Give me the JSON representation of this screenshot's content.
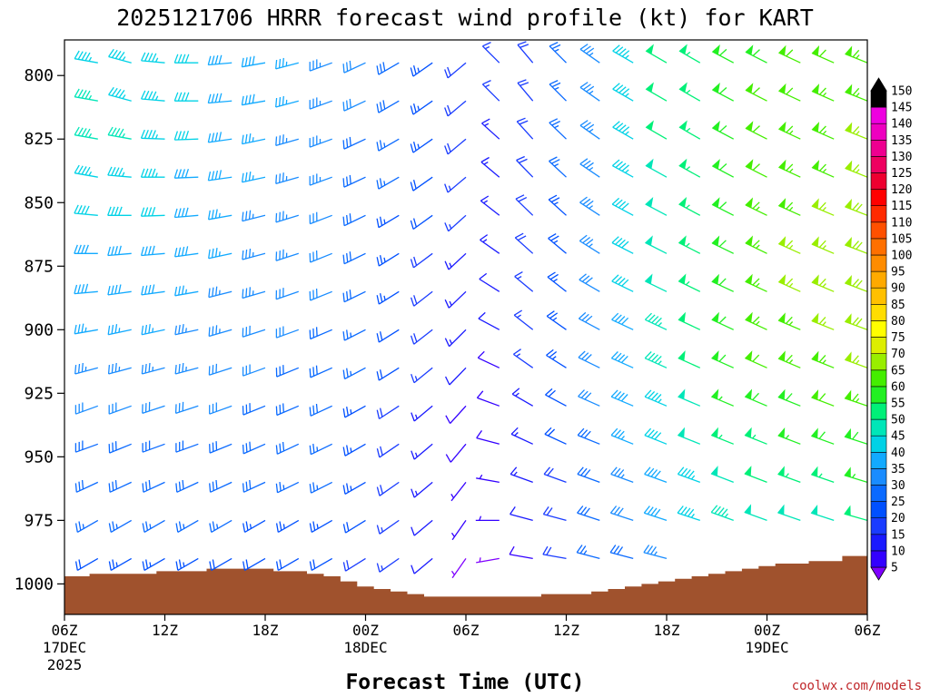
{
  "title": "2025121706 HRRR forecast wind profile (kt) for KART",
  "credit": "coolwx.com/models",
  "chart_data": {
    "type": "wind_barb_time_height",
    "xlabel": "Forecast Time (UTC)",
    "ylabel": "",
    "x_range_hours": [
      0,
      48
    ],
    "y_range_hpa": [
      1012,
      786
    ],
    "y_axis_inverted": true,
    "x_ticks": [
      {
        "hour": 0,
        "label": "06Z",
        "date1": "17DEC",
        "date2": "2025"
      },
      {
        "hour": 6,
        "label": "12Z",
        "date1": "",
        "date2": ""
      },
      {
        "hour": 12,
        "label": "18Z",
        "date1": "",
        "date2": ""
      },
      {
        "hour": 18,
        "label": "00Z",
        "date1": "18DEC",
        "date2": ""
      },
      {
        "hour": 24,
        "label": "06Z",
        "date1": "",
        "date2": ""
      },
      {
        "hour": 30,
        "label": "12Z",
        "date1": "",
        "date2": ""
      },
      {
        "hour": 36,
        "label": "18Z",
        "date1": "",
        "date2": ""
      },
      {
        "hour": 42,
        "label": "00Z",
        "date1": "19DEC",
        "date2": ""
      },
      {
        "hour": 48,
        "label": "06Z",
        "date1": "",
        "date2": ""
      }
    ],
    "y_ticks": [
      "800",
      "825",
      "850",
      "875",
      "900",
      "925",
      "950",
      "975",
      "1000"
    ],
    "colorbar": {
      "labels": [
        "5",
        "10",
        "15",
        "20",
        "25",
        "30",
        "35",
        "40",
        "45",
        "50",
        "55",
        "60",
        "65",
        "70",
        "75",
        "80",
        "85",
        "90",
        "95",
        "100",
        "105",
        "110",
        "115",
        "120",
        "125",
        "130",
        "135",
        "140",
        "145",
        "150"
      ],
      "colors": [
        "#7f00ff",
        "#3300ff",
        "#1a1aff",
        "#1a3cff",
        "#0050ff",
        "#0a6aff",
        "#1a8cff",
        "#12aaff",
        "#00d2e6",
        "#00e6b8",
        "#00f078",
        "#22f022",
        "#44ee00",
        "#99ee00",
        "#ddee00",
        "#ffff00",
        "#ffdd00",
        "#ffc000",
        "#ffaa00",
        "#ff8c00",
        "#ff7000",
        "#ff5000",
        "#ff2a00",
        "#ff0000",
        "#ee0030",
        "#ee0060",
        "#ee0090",
        "#ee00c0",
        "#ee00e0",
        "#000000"
      ]
    },
    "terrain_surface_pressure_hpa": [
      [
        0,
        997
      ],
      [
        1,
        997
      ],
      [
        2,
        996
      ],
      [
        3,
        996
      ],
      [
        4,
        996
      ],
      [
        5,
        996
      ],
      [
        6,
        995
      ],
      [
        7,
        995
      ],
      [
        8,
        995
      ],
      [
        9,
        994
      ],
      [
        10,
        994
      ],
      [
        11,
        994
      ],
      [
        12,
        994
      ],
      [
        13,
        995
      ],
      [
        14,
        995
      ],
      [
        15,
        996
      ],
      [
        16,
        997
      ],
      [
        17,
        999
      ],
      [
        18,
        1001
      ],
      [
        19,
        1002
      ],
      [
        20,
        1003
      ],
      [
        21,
        1004
      ],
      [
        22,
        1005
      ],
      [
        23,
        1005
      ],
      [
        24,
        1005
      ],
      [
        25,
        1005
      ],
      [
        26,
        1005
      ],
      [
        27,
        1005
      ],
      [
        28,
        1005
      ],
      [
        29,
        1004
      ],
      [
        30,
        1004
      ],
      [
        31,
        1004
      ],
      [
        32,
        1003
      ],
      [
        33,
        1002
      ],
      [
        34,
        1001
      ],
      [
        35,
        1000
      ],
      [
        36,
        999
      ],
      [
        37,
        998
      ],
      [
        38,
        997
      ],
      [
        39,
        996
      ],
      [
        40,
        995
      ],
      [
        41,
        994
      ],
      [
        42,
        993
      ],
      [
        43,
        992
      ],
      [
        44,
        992
      ],
      [
        45,
        991
      ],
      [
        46,
        991
      ],
      [
        47,
        989
      ],
      [
        48,
        989
      ]
    ],
    "wind_rows_hpa": [
      795,
      810,
      825,
      840,
      855,
      870,
      885,
      900,
      915,
      930,
      945,
      960,
      975,
      990
    ],
    "wind_columns": [
      {
        "hour": 0,
        "direction_deg": [
          255,
          255,
          255,
          255,
          255,
          255,
          255,
          250,
          250,
          250,
          250,
          245,
          240,
          240
        ],
        "speed_kt": [
          38,
          40,
          40,
          38,
          38,
          37,
          36,
          35,
          35,
          33,
          32,
          30,
          28,
          25
        ]
      },
      {
        "hour": 2,
        "direction_deg": [
          280,
          280,
          280,
          280,
          275,
          270,
          265,
          260,
          255,
          250,
          250,
          245,
          240,
          240
        ],
        "speed_kt": [
          45,
          48,
          48,
          46,
          44,
          42,
          40,
          38,
          36,
          34,
          32,
          30,
          28,
          24
        ]
      },
      {
        "hour": 4,
        "direction_deg": [
          285,
          285,
          280,
          275,
          270,
          265,
          262,
          258,
          255,
          250,
          248,
          245,
          240,
          240
        ],
        "speed_kt": [
          45,
          47,
          48,
          46,
          44,
          42,
          40,
          38,
          36,
          34,
          32,
          30,
          28,
          25
        ]
      },
      {
        "hour": 6,
        "direction_deg": [
          275,
          275,
          272,
          270,
          268,
          265,
          262,
          258,
          255,
          252,
          250,
          245,
          240,
          240
        ],
        "speed_kt": [
          45,
          46,
          46,
          45,
          44,
          42,
          40,
          38,
          36,
          34,
          32,
          30,
          28,
          25
        ]
      },
      {
        "hour": 8,
        "direction_deg": [
          270,
          270,
          268,
          268,
          265,
          262,
          260,
          258,
          255,
          252,
          250,
          245,
          240,
          240
        ],
        "speed_kt": [
          44,
          44,
          43,
          42,
          41,
          40,
          38,
          37,
          35,
          34,
          32,
          30,
          28,
          25
        ]
      },
      {
        "hour": 10,
        "direction_deg": [
          265,
          265,
          262,
          262,
          260,
          258,
          256,
          254,
          252,
          250,
          248,
          245,
          240,
          240
        ],
        "speed_kt": [
          42,
          42,
          40,
          40,
          38,
          38,
          37,
          35,
          34,
          33,
          32,
          30,
          28,
          24
        ]
      },
      {
        "hour": 12,
        "direction_deg": [
          260,
          260,
          258,
          258,
          256,
          255,
          254,
          252,
          250,
          248,
          246,
          245,
          240,
          240
        ],
        "speed_kt": [
          40,
          40,
          38,
          38,
          37,
          36,
          35,
          34,
          33,
          32,
          31,
          30,
          27,
          24
        ]
      },
      {
        "hour": 14,
        "direction_deg": [
          255,
          255,
          254,
          254,
          253,
          252,
          251,
          250,
          248,
          247,
          245,
          244,
          240,
          240
        ],
        "speed_kt": [
          38,
          38,
          37,
          37,
          36,
          35,
          34,
          33,
          32,
          31,
          30,
          29,
          27,
          24
        ]
      },
      {
        "hour": 16,
        "direction_deg": [
          250,
          250,
          250,
          250,
          249,
          248,
          248,
          247,
          246,
          245,
          244,
          243,
          240,
          240
        ],
        "speed_kt": [
          36,
          36,
          35,
          35,
          34,
          33,
          33,
          32,
          31,
          30,
          29,
          28,
          26,
          23
        ]
      },
      {
        "hour": 18,
        "direction_deg": [
          245,
          245,
          245,
          245,
          244,
          244,
          244,
          243,
          242,
          241,
          240,
          240,
          238,
          238
        ],
        "speed_kt": [
          33,
          33,
          32,
          32,
          31,
          30,
          30,
          29,
          28,
          27,
          26,
          25,
          24,
          22
        ]
      },
      {
        "hour": 20,
        "direction_deg": [
          240,
          240,
          240,
          240,
          239,
          238,
          238,
          238,
          238,
          237,
          236,
          235,
          235,
          235
        ],
        "speed_kt": [
          30,
          30,
          29,
          28,
          27,
          26,
          25,
          24,
          23,
          22,
          21,
          20,
          19,
          18
        ]
      },
      {
        "hour": 22,
        "direction_deg": [
          235,
          235,
          235,
          235,
          234,
          233,
          232,
          232,
          231,
          230,
          230,
          230,
          230,
          230
        ],
        "speed_kt": [
          26,
          26,
          25,
          24,
          23,
          22,
          21,
          20,
          18,
          17,
          16,
          15,
          14,
          13
        ]
      },
      {
        "hour": 24,
        "direction_deg": [
          230,
          230,
          230,
          230,
          228,
          227,
          226,
          225,
          224,
          222,
          220,
          218,
          215,
          215
        ],
        "speed_kt": [
          20,
          20,
          20,
          19,
          18,
          17,
          16,
          15,
          13,
          12,
          10,
          9,
          8,
          7
        ]
      },
      {
        "hour": 26,
        "direction_deg": [
          315,
          315,
          312,
          310,
          308,
          305,
          302,
          298,
          295,
          290,
          285,
          280,
          270,
          260
        ],
        "speed_kt": [
          18,
          18,
          17,
          17,
          16,
          15,
          14,
          13,
          12,
          11,
          10,
          9,
          8,
          7
        ]
      },
      {
        "hour": 28,
        "direction_deg": [
          320,
          320,
          318,
          316,
          314,
          312,
          310,
          308,
          305,
          300,
          295,
          290,
          285,
          280
        ],
        "speed_kt": [
          22,
          22,
          22,
          21,
          20,
          20,
          19,
          18,
          18,
          17,
          16,
          15,
          14,
          12
        ]
      },
      {
        "hour": 30,
        "direction_deg": [
          315,
          315,
          314,
          313,
          312,
          310,
          308,
          305,
          302,
          298,
          295,
          290,
          285,
          280
        ],
        "speed_kt": [
          28,
          28,
          28,
          28,
          27,
          27,
          26,
          26,
          25,
          24,
          23,
          22,
          21,
          20
        ]
      },
      {
        "hour": 32,
        "direction_deg": [
          305,
          305,
          305,
          304,
          303,
          302,
          300,
          298,
          296,
          294,
          292,
          290,
          288,
          285
        ],
        "speed_kt": [
          35,
          35,
          35,
          35,
          35,
          35,
          34,
          34,
          33,
          33,
          32,
          31,
          30,
          28
        ]
      },
      {
        "hour": 34,
        "direction_deg": [
          300,
          300,
          300,
          299,
          298,
          297,
          296,
          295,
          294,
          293,
          292,
          290,
          288,
          285
        ],
        "speed_kt": [
          45,
          45,
          45,
          45,
          44,
          44,
          43,
          42,
          41,
          40,
          38,
          36,
          34,
          30
        ]
      },
      {
        "hour": 36,
        "direction_deg": [
          300,
          300,
          300,
          299,
          298,
          297,
          296,
          295,
          294,
          293,
          292,
          290,
          288,
          285
        ],
        "speed_kt": [
          53,
          53,
          53,
          52,
          52,
          51,
          50,
          49,
          48,
          46,
          44,
          42,
          40,
          35
        ]
      },
      {
        "hour": 38,
        "direction_deg": [
          300,
          300,
          300,
          299,
          298,
          297,
          296,
          295,
          294,
          293,
          292,
          290,
          288,
          285
        ],
        "speed_kt": [
          56,
          56,
          57,
          57,
          56,
          56,
          55,
          54,
          53,
          52,
          50,
          47,
          45
        ]
      },
      {
        "hour": 40,
        "direction_deg": [
          298,
          298,
          298,
          298,
          297,
          296,
          295,
          295,
          294,
          293,
          292,
          291,
          290
        ],
        "speed_kt": [
          60,
          60,
          61,
          61,
          62,
          62,
          62,
          61,
          60,
          58,
          55,
          52,
          48
        ]
      },
      {
        "hour": 42,
        "direction_deg": [
          297,
          297,
          297,
          297,
          296,
          296,
          295,
          295,
          294,
          293,
          292,
          291,
          290
        ],
        "speed_kt": [
          62,
          63,
          63,
          64,
          65,
          66,
          66,
          65,
          63,
          60,
          57,
          54,
          50
        ]
      },
      {
        "hour": 44,
        "direction_deg": [
          295,
          295,
          295,
          295,
          294,
          294,
          294,
          293,
          293,
          292,
          291,
          290,
          289
        ],
        "speed_kt": [
          63,
          64,
          65,
          66,
          67,
          68,
          68,
          67,
          65,
          62,
          59,
          55,
          51
        ]
      },
      {
        "hour": 46,
        "direction_deg": [
          294,
          294,
          294,
          294,
          293,
          293,
          293,
          292,
          292,
          291,
          290,
          289,
          288
        ],
        "speed_kt": [
          64,
          65,
          66,
          67,
          68,
          69,
          69,
          68,
          66,
          63,
          60,
          56,
          52
        ]
      },
      {
        "hour": 48,
        "direction_deg": [
          292,
          292,
          292,
          292,
          291,
          291,
          291,
          290,
          290,
          289,
          288,
          287,
          286
        ],
        "speed_kt": [
          66,
          67,
          68,
          69,
          70,
          71,
          71,
          70,
          68,
          65,
          62,
          58,
          54
        ]
      }
    ]
  }
}
